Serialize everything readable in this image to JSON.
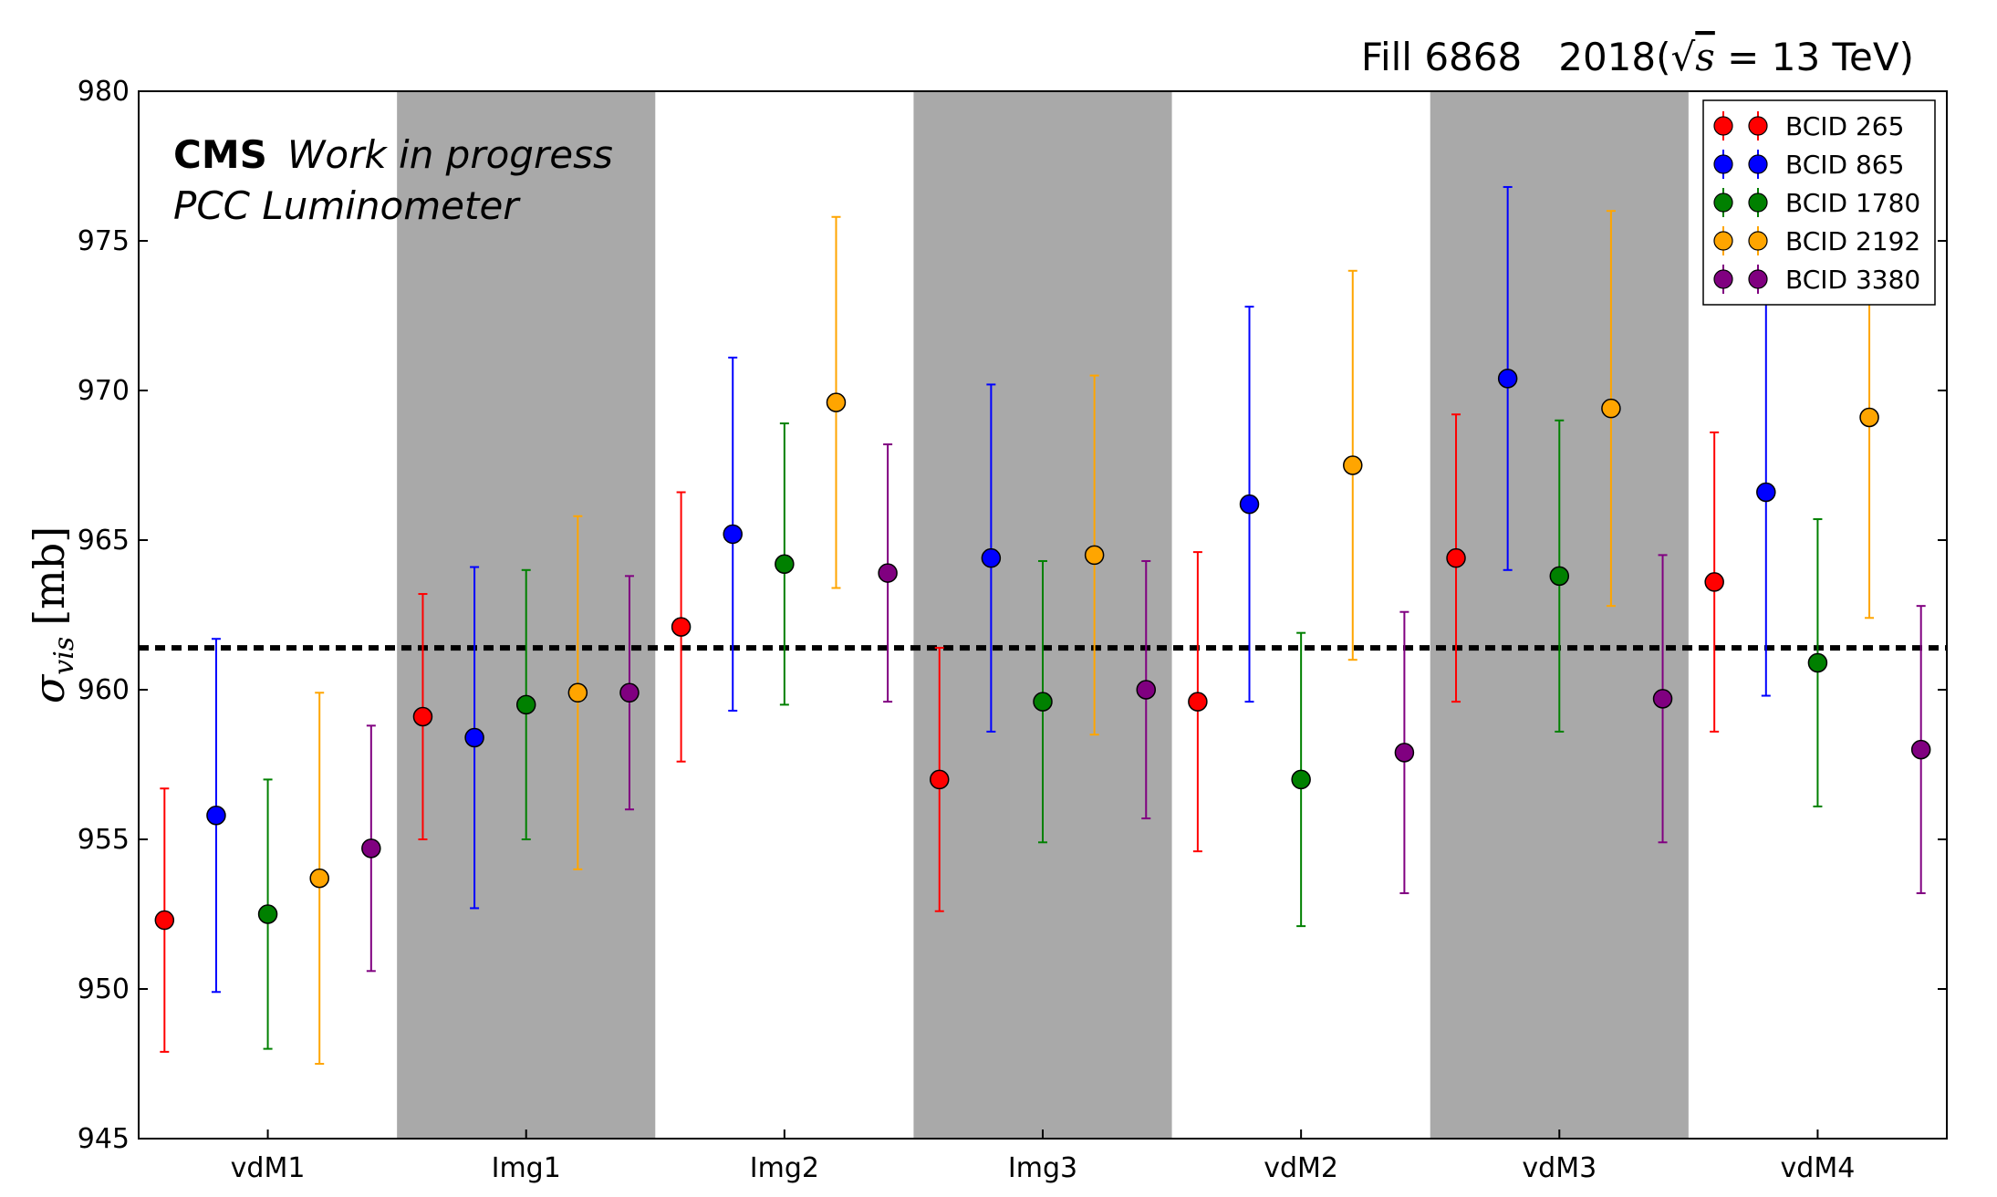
{
  "header": {
    "fill_label": "Fill 6868",
    "year_label": "2018(",
    "sqrt_symbol": "√",
    "sqrt_var": "s",
    "energy_label": " = 13 TeV)"
  },
  "annotation": {
    "cms": "CMS",
    "status": "Work in progress",
    "detector": "PCC Luminometer"
  },
  "colors": {
    "BCID 265": "#ff0000",
    "BCID 865": "#0000ff",
    "BCID 1780": "#008000",
    "BCID 2192": "#ffa500",
    "BCID 3380": "#800080",
    "band": "#a9a9a9",
    "average_line": "#000000"
  },
  "chart_data": {
    "type": "scatter",
    "categories": [
      "vdM1",
      "Img1",
      "Img2",
      "Img3",
      "vdM2",
      "vdM3",
      "vdM4"
    ],
    "shaded_categories": [
      "Img1",
      "Img3",
      "vdM3"
    ],
    "ylabel_symbol": "σ",
    "ylabel_sub": "vis",
    "ylabel_unit": "[mb]",
    "ylim": [
      945,
      980
    ],
    "yticks": [
      945,
      950,
      955,
      960,
      965,
      970,
      975,
      980
    ],
    "average_line": 961.4,
    "legend_position": "top-right",
    "grid": false,
    "series": [
      {
        "name": "BCID 265",
        "values": [
          952.3,
          959.1,
          962.1,
          957.0,
          959.6,
          964.4,
          963.6
        ],
        "err": [
          4.4,
          4.1,
          4.5,
          4.4,
          5.0,
          4.8,
          5.0
        ]
      },
      {
        "name": "BCID 865",
        "values": [
          955.8,
          958.4,
          965.2,
          964.4,
          966.2,
          970.4,
          966.6
        ],
        "err": [
          5.9,
          5.7,
          5.9,
          5.8,
          6.6,
          6.4,
          6.8
        ]
      },
      {
        "name": "BCID 1780",
        "values": [
          952.5,
          959.5,
          964.2,
          959.6,
          957.0,
          963.8,
          960.9
        ],
        "err": [
          4.5,
          4.5,
          4.7,
          4.7,
          4.9,
          5.2,
          4.8
        ]
      },
      {
        "name": "BCID 2192",
        "values": [
          953.7,
          959.9,
          969.6,
          964.5,
          967.5,
          969.4,
          969.1
        ],
        "err": [
          6.2,
          5.9,
          6.2,
          6.0,
          6.5,
          6.6,
          6.7
        ]
      },
      {
        "name": "BCID 3380",
        "values": [
          954.7,
          959.9,
          963.9,
          960.0,
          957.9,
          959.7,
          958.0
        ],
        "err": [
          4.1,
          3.9,
          4.3,
          4.3,
          4.7,
          4.8,
          4.8
        ]
      }
    ]
  }
}
